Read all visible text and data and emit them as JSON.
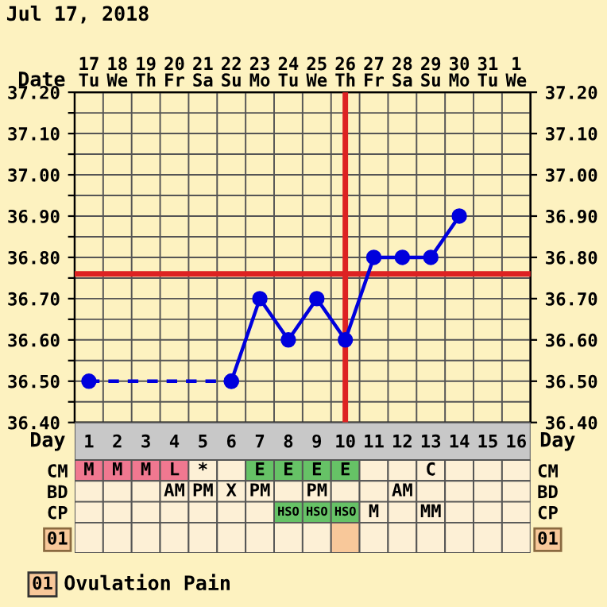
{
  "chart_data": [
    {
      "type": "line",
      "title": "Jul 17, 2018",
      "xlabel": "Date",
      "categories": [
        "17\nTu",
        "18\nWe",
        "19\nTh",
        "20\nFr",
        "21\nSa",
        "22\nSu",
        "23\nMo",
        "24\nTu",
        "25\nWe",
        "26\nTh",
        "27\nFr",
        "28\nSa",
        "29\nSu",
        "30\nMo",
        "31\nTu",
        "1\nWe"
      ],
      "series": [
        {
          "color": "#0000dd",
          "marker": "circle",
          "line_style": "solid",
          "values": [
            null,
            null,
            null,
            null,
            null,
            36.5,
            36.7,
            36.6,
            36.7,
            36.6,
            36.8,
            36.8,
            36.8,
            36.9,
            null,
            null
          ]
        },
        {
          "color": "#0000dd",
          "marker": "circle",
          "line_style": "dashed",
          "values": [
            36.5,
            null,
            null,
            null,
            null,
            36.5,
            null,
            null,
            null,
            null,
            null,
            null,
            null,
            null,
            null,
            null
          ]
        }
      ],
      "ylim": [
        36.4,
        37.2
      ],
      "yticks": [
        {
          "value": 36.4,
          "label": "36.40"
        },
        {
          "value": 36.45,
          "label": null
        },
        {
          "value": 36.5,
          "label": "36.50"
        },
        {
          "value": 36.55,
          "label": null
        },
        {
          "value": 36.6,
          "label": "36.60"
        },
        {
          "value": 36.65,
          "label": null
        },
        {
          "value": 36.7,
          "label": "36.70"
        },
        {
          "value": 36.75,
          "label": null
        },
        {
          "value": 36.8,
          "label": "36.80"
        },
        {
          "value": 36.85,
          "label": null
        },
        {
          "value": 36.9,
          "label": "36.90"
        },
        {
          "value": 36.95,
          "label": null
        },
        {
          "value": 37.0,
          "label": "37.00"
        },
        {
          "value": 37.05,
          "label": null
        },
        {
          "value": 37.1,
          "label": "37.10"
        },
        {
          "value": 37.15,
          "label": null
        },
        {
          "value": 37.2,
          "label": "37.20"
        }
      ],
      "y2lim": [
        36.4,
        37.2
      ],
      "y2ticks": [
        {
          "value": 36.4,
          "label": "36.40"
        },
        {
          "value": 36.5,
          "label": "36.50"
        },
        {
          "value": 36.6,
          "label": "36.60"
        },
        {
          "value": 36.7,
          "label": "36.70"
        },
        {
          "value": 36.8,
          "label": "36.80"
        },
        {
          "value": 36.9,
          "label": "36.90"
        },
        {
          "value": 37.0,
          "label": "37.00"
        },
        {
          "value": 37.1,
          "label": "37.10"
        },
        {
          "value": 37.2,
          "label": "37.20"
        }
      ],
      "grid": true,
      "ref_lines": [
        {
          "axis": "y",
          "value": 36.76,
          "color": "#dd2222"
        },
        {
          "axis": "x",
          "value": "26\nTh",
          "color": "#dd2222"
        }
      ]
    },
    {
      "type": "heatmap",
      "xlabel": "Day",
      "categories": [
        "1",
        "2",
        "3",
        "4",
        "5",
        "6",
        "7",
        "8",
        "9",
        "10",
        "11",
        "12",
        "13",
        "14",
        "15",
        "16"
      ],
      "y_categories": [
        "CM",
        "BD",
        "CP",
        "01"
      ],
      "y2_categories": [
        "CM",
        "BD",
        "CP",
        "01"
      ],
      "cells": [
        [
          null,
          null,
          null,
          null,
          null,
          null,
          null,
          null,
          null,
          null,
          null,
          null,
          null,
          null,
          null,
          null
        ],
        [
          null,
          null,
          null,
          null,
          null,
          null,
          null,
          null,
          null,
          null,
          null,
          null,
          null,
          null,
          null,
          null
        ],
        [
          null,
          null,
          null,
          null,
          null,
          null,
          null,
          null,
          null,
          null,
          null,
          null,
          null,
          null,
          null,
          null
        ],
        [
          null,
          null,
          null,
          null,
          null,
          null,
          null,
          null,
          null,
          null,
          null,
          null,
          null,
          null,
          null,
          null
        ]
      ],
      "cell_labels": [
        [
          "M",
          "M",
          "M",
          "L",
          "*",
          null,
          "E",
          "E",
          "E",
          "E",
          null,
          null,
          "C",
          null,
          null,
          null
        ],
        [
          null,
          null,
          null,
          "AM",
          "PM",
          "X",
          "PM",
          null,
          "PM",
          null,
          null,
          "AM",
          null,
          null,
          null,
          null
        ],
        [
          null,
          null,
          null,
          null,
          null,
          null,
          null,
          "HSO",
          "HSO",
          "HSO",
          "M",
          null,
          "MM",
          null,
          null,
          null
        ],
        [
          null,
          null,
          null,
          null,
          null,
          null,
          null,
          null,
          null,
          null,
          null,
          null,
          null,
          null,
          null,
          null
        ]
      ],
      "colors": [
        [
          "#f07890",
          "#f07890",
          "#f07890",
          "#f07890",
          null,
          null,
          "#66c266",
          "#66c266",
          "#66c266",
          "#66c266",
          null,
          null,
          null,
          null,
          null,
          null
        ],
        [
          null,
          null,
          null,
          null,
          null,
          null,
          null,
          null,
          null,
          null,
          null,
          null,
          null,
          null,
          null,
          null
        ],
        [
          null,
          null,
          null,
          null,
          null,
          null,
          null,
          "#66c266",
          "#66c266",
          "#66c266",
          null,
          null,
          null,
          null,
          null,
          null
        ],
        [
          null,
          null,
          null,
          null,
          null,
          null,
          null,
          null,
          null,
          "#f8c89a",
          null,
          null,
          null,
          null,
          null,
          null
        ]
      ],
      "annotations": [
        "Ovulation Pain"
      ]
    }
  ]
}
